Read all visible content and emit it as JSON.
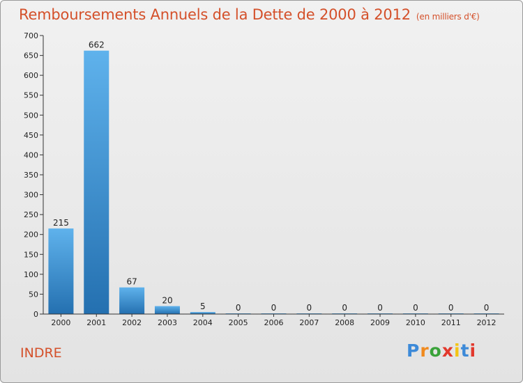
{
  "chart_data": {
    "type": "bar",
    "title": "Remboursements Annuels de la Dette de 2000 à 2012",
    "subtitle": "(en milliers d'€)",
    "categories": [
      "2000",
      "2001",
      "2002",
      "2003",
      "2004",
      "2005",
      "2006",
      "2007",
      "2008",
      "2009",
      "2010",
      "2011",
      "2012"
    ],
    "values": [
      215,
      662,
      67,
      20,
      5,
      0,
      0,
      0,
      0,
      0,
      0,
      0,
      0
    ],
    "ylim": [
      0,
      700
    ],
    "yticks": [
      0,
      50,
      100,
      150,
      200,
      250,
      300,
      350,
      400,
      450,
      500,
      550,
      600,
      650,
      700
    ],
    "xlabel": "",
    "ylabel": "",
    "grid": false,
    "bar_color_light": "#5fb2ec",
    "bar_color_dark": "#2470b0"
  },
  "footer": {
    "commune": "INDRE",
    "logo": {
      "letters": [
        "P",
        "r",
        "o",
        "x",
        "i",
        "t",
        "i"
      ],
      "colors": [
        "#3d8ad8",
        "#f08a1e",
        "#3aa33a",
        "#e2382c",
        "#f3c414",
        "#3d8ad8",
        "#e2382c"
      ]
    }
  }
}
